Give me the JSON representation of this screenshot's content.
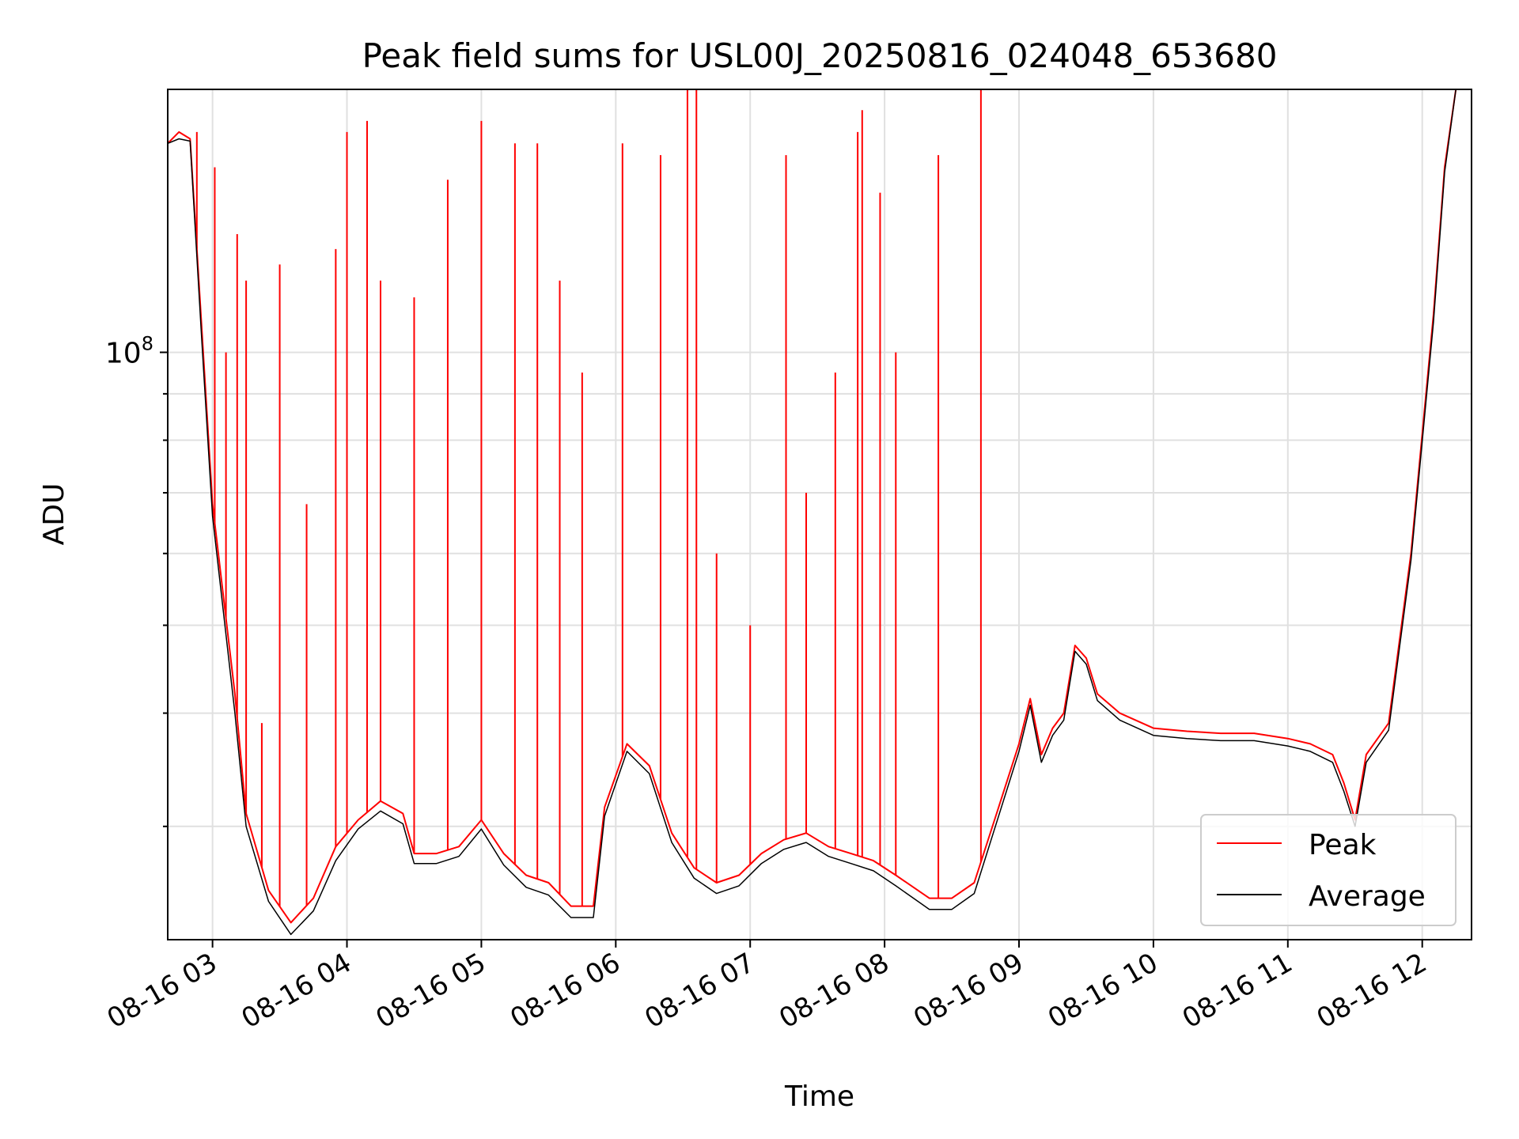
{
  "chart_data": {
    "type": "line",
    "title": "Peak field sums for USL00J_20250816_024048_653680",
    "xlabel": "Time",
    "ylabel": "ADU",
    "yscale": "log",
    "grid": true,
    "legend_position": "bottom-right",
    "x_range": [
      "2025-08-16 02:40",
      "2025-08-16 12:22"
    ],
    "y_range": [
      22500000,
      195000000
    ],
    "x_ticks": [
      "08-16 03",
      "08-16 04",
      "08-16 05",
      "08-16 06",
      "08-16 07",
      "08-16 08",
      "08-16 09",
      "08-16 10",
      "08-16 11",
      "08-16 12"
    ],
    "y_ticks": [
      {
        "value": 100000000,
        "base": "10",
        "exp": "8"
      }
    ],
    "colors": {
      "peak": "#ff0000",
      "average": "#000000",
      "grid": "#e0e0e0"
    },
    "series": [
      {
        "name": "Peak",
        "color": "#ff0000",
        "points": [
          [
            "2025-08-16 02:40",
            170000000
          ],
          [
            "2025-08-16 02:45",
            175000000
          ],
          [
            "2025-08-16 02:50",
            172000000
          ],
          [
            "2025-08-16 02:55",
            108000000
          ],
          [
            "2025-08-16 03:00",
            68000000
          ],
          [
            "2025-08-16 03:10",
            42000000
          ],
          [
            "2025-08-16 03:15",
            31000000
          ],
          [
            "2025-08-16 03:25",
            25500000
          ],
          [
            "2025-08-16 03:35",
            23500000
          ],
          [
            "2025-08-16 03:45",
            25000000
          ],
          [
            "2025-08-16 03:55",
            28500000
          ],
          [
            "2025-08-16 04:05",
            30500000
          ],
          [
            "2025-08-16 04:15",
            32000000
          ],
          [
            "2025-08-16 04:25",
            31000000
          ],
          [
            "2025-08-16 04:30",
            28000000
          ],
          [
            "2025-08-16 04:40",
            28000000
          ],
          [
            "2025-08-16 04:50",
            28500000
          ],
          [
            "2025-08-16 05:00",
            30500000
          ],
          [
            "2025-08-16 05:10",
            28000000
          ],
          [
            "2025-08-16 05:20",
            26500000
          ],
          [
            "2025-08-16 05:30",
            26000000
          ],
          [
            "2025-08-16 05:40",
            24500000
          ],
          [
            "2025-08-16 05:50",
            24500000
          ],
          [
            "2025-08-16 05:55",
            31500000
          ],
          [
            "2025-08-16 06:05",
            37000000
          ],
          [
            "2025-08-16 06:15",
            35000000
          ],
          [
            "2025-08-16 06:25",
            29500000
          ],
          [
            "2025-08-16 06:35",
            27000000
          ],
          [
            "2025-08-16 06:45",
            26000000
          ],
          [
            "2025-08-16 06:55",
            26500000
          ],
          [
            "2025-08-16 07:05",
            28000000
          ],
          [
            "2025-08-16 07:15",
            29000000
          ],
          [
            "2025-08-16 07:25",
            29500000
          ],
          [
            "2025-08-16 07:35",
            28500000
          ],
          [
            "2025-08-16 07:45",
            28000000
          ],
          [
            "2025-08-16 07:55",
            27500000
          ],
          [
            "2025-08-16 08:05",
            26500000
          ],
          [
            "2025-08-16 08:20",
            25000000
          ],
          [
            "2025-08-16 08:30",
            25000000
          ],
          [
            "2025-08-16 08:40",
            26000000
          ],
          [
            "2025-08-16 08:50",
            31000000
          ],
          [
            "2025-08-16 09:00",
            37000000
          ],
          [
            "2025-08-16 09:05",
            41500000
          ],
          [
            "2025-08-16 09:10",
            36000000
          ],
          [
            "2025-08-16 09:15",
            38500000
          ],
          [
            "2025-08-16 09:20",
            40000000
          ],
          [
            "2025-08-16 09:25",
            47500000
          ],
          [
            "2025-08-16 09:30",
            46000000
          ],
          [
            "2025-08-16 09:35",
            42000000
          ],
          [
            "2025-08-16 09:45",
            40000000
          ],
          [
            "2025-08-16 10:00",
            38500000
          ],
          [
            "2025-08-16 10:15",
            38200000
          ],
          [
            "2025-08-16 10:30",
            38000000
          ],
          [
            "2025-08-16 10:45",
            38000000
          ],
          [
            "2025-08-16 11:00",
            37500000
          ],
          [
            "2025-08-16 11:10",
            37000000
          ],
          [
            "2025-08-16 11:20",
            36000000
          ],
          [
            "2025-08-16 11:25",
            33500000
          ],
          [
            "2025-08-16 11:30",
            30500000
          ],
          [
            "2025-08-16 11:35",
            36000000
          ],
          [
            "2025-08-16 11:45",
            39000000
          ],
          [
            "2025-08-16 11:55",
            60000000
          ],
          [
            "2025-08-16 12:05",
            110000000
          ],
          [
            "2025-08-16 12:10",
            160000000
          ],
          [
            "2025-08-16 12:15",
            195000000
          ],
          [
            "2025-08-16 12:22",
            195000000
          ]
        ],
        "spikes": [
          [
            "2025-08-16 02:53",
            175000000
          ],
          [
            "2025-08-16 03:01",
            160000000
          ],
          [
            "2025-08-16 03:06",
            100000000
          ],
          [
            "2025-08-16 03:11",
            135000000
          ],
          [
            "2025-08-16 03:15",
            120000000
          ],
          [
            "2025-08-16 03:22",
            39000000
          ],
          [
            "2025-08-16 03:30",
            125000000
          ],
          [
            "2025-08-16 03:42",
            68000000
          ],
          [
            "2025-08-16 03:55",
            130000000
          ],
          [
            "2025-08-16 04:00",
            175000000
          ],
          [
            "2025-08-16 04:09",
            180000000
          ],
          [
            "2025-08-16 04:15",
            120000000
          ],
          [
            "2025-08-16 04:30",
            115000000
          ],
          [
            "2025-08-16 04:45",
            155000000
          ],
          [
            "2025-08-16 05:00",
            180000000
          ],
          [
            "2025-08-16 05:15",
            170000000
          ],
          [
            "2025-08-16 05:25",
            170000000
          ],
          [
            "2025-08-16 05:35",
            120000000
          ],
          [
            "2025-08-16 05:45",
            95000000
          ],
          [
            "2025-08-16 06:03",
            170000000
          ],
          [
            "2025-08-16 06:20",
            165000000
          ],
          [
            "2025-08-16 06:32",
            195000000
          ],
          [
            "2025-08-16 06:36",
            195000000
          ],
          [
            "2025-08-16 06:45",
            60000000
          ],
          [
            "2025-08-16 07:00",
            50000000
          ],
          [
            "2025-08-16 07:16",
            165000000
          ],
          [
            "2025-08-16 07:25",
            70000000
          ],
          [
            "2025-08-16 07:38",
            95000000
          ],
          [
            "2025-08-16 07:48",
            175000000
          ],
          [
            "2025-08-16 07:50",
            185000000
          ],
          [
            "2025-08-16 07:58",
            150000000
          ],
          [
            "2025-08-16 08:05",
            100000000
          ],
          [
            "2025-08-16 08:24",
            165000000
          ],
          [
            "2025-08-16 08:43",
            195000000
          ]
        ]
      },
      {
        "name": "Average",
        "color": "#000000",
        "points": [
          [
            "2025-08-16 02:40",
            170000000
          ],
          [
            "2025-08-16 02:45",
            172000000
          ],
          [
            "2025-08-16 02:50",
            171000000
          ],
          [
            "2025-08-16 02:55",
            105000000
          ],
          [
            "2025-08-16 03:00",
            66000000
          ],
          [
            "2025-08-16 03:10",
            40000000
          ],
          [
            "2025-08-16 03:15",
            30000000
          ],
          [
            "2025-08-16 03:25",
            24800000
          ],
          [
            "2025-08-16 03:35",
            22800000
          ],
          [
            "2025-08-16 03:45",
            24200000
          ],
          [
            "2025-08-16 03:55",
            27500000
          ],
          [
            "2025-08-16 04:05",
            29800000
          ],
          [
            "2025-08-16 04:15",
            31200000
          ],
          [
            "2025-08-16 04:25",
            30200000
          ],
          [
            "2025-08-16 04:30",
            27300000
          ],
          [
            "2025-08-16 04:40",
            27300000
          ],
          [
            "2025-08-16 04:50",
            27800000
          ],
          [
            "2025-08-16 05:00",
            29800000
          ],
          [
            "2025-08-16 05:10",
            27200000
          ],
          [
            "2025-08-16 05:20",
            25700000
          ],
          [
            "2025-08-16 05:30",
            25200000
          ],
          [
            "2025-08-16 05:40",
            23800000
          ],
          [
            "2025-08-16 05:50",
            23800000
          ],
          [
            "2025-08-16 05:55",
            30800000
          ],
          [
            "2025-08-16 06:05",
            36300000
          ],
          [
            "2025-08-16 06:15",
            34300000
          ],
          [
            "2025-08-16 06:25",
            28800000
          ],
          [
            "2025-08-16 06:35",
            26300000
          ],
          [
            "2025-08-16 06:45",
            25300000
          ],
          [
            "2025-08-16 06:55",
            25800000
          ],
          [
            "2025-08-16 07:05",
            27300000
          ],
          [
            "2025-08-16 07:15",
            28300000
          ],
          [
            "2025-08-16 07:25",
            28800000
          ],
          [
            "2025-08-16 07:35",
            27800000
          ],
          [
            "2025-08-16 07:45",
            27300000
          ],
          [
            "2025-08-16 07:55",
            26800000
          ],
          [
            "2025-08-16 08:05",
            25800000
          ],
          [
            "2025-08-16 08:20",
            24300000
          ],
          [
            "2025-08-16 08:30",
            24300000
          ],
          [
            "2025-08-16 08:40",
            25300000
          ],
          [
            "2025-08-16 08:50",
            30300000
          ],
          [
            "2025-08-16 09:00",
            36300000
          ],
          [
            "2025-08-16 09:05",
            40800000
          ],
          [
            "2025-08-16 09:10",
            35300000
          ],
          [
            "2025-08-16 09:15",
            37800000
          ],
          [
            "2025-08-16 09:20",
            39300000
          ],
          [
            "2025-08-16 09:25",
            46800000
          ],
          [
            "2025-08-16 09:30",
            45300000
          ],
          [
            "2025-08-16 09:35",
            41300000
          ],
          [
            "2025-08-16 09:45",
            39300000
          ],
          [
            "2025-08-16 10:00",
            37800000
          ],
          [
            "2025-08-16 10:15",
            37500000
          ],
          [
            "2025-08-16 10:30",
            37300000
          ],
          [
            "2025-08-16 10:45",
            37300000
          ],
          [
            "2025-08-16 11:00",
            36800000
          ],
          [
            "2025-08-16 11:10",
            36300000
          ],
          [
            "2025-08-16 11:20",
            35300000
          ],
          [
            "2025-08-16 11:25",
            32800000
          ],
          [
            "2025-08-16 11:30",
            30000000
          ],
          [
            "2025-08-16 11:35",
            35300000
          ],
          [
            "2025-08-16 11:45",
            38300000
          ],
          [
            "2025-08-16 11:55",
            59000000
          ],
          [
            "2025-08-16 12:05",
            108000000
          ],
          [
            "2025-08-16 12:10",
            158000000
          ],
          [
            "2025-08-16 12:15",
            195000000
          ],
          [
            "2025-08-16 12:22",
            195000000
          ]
        ]
      }
    ]
  }
}
